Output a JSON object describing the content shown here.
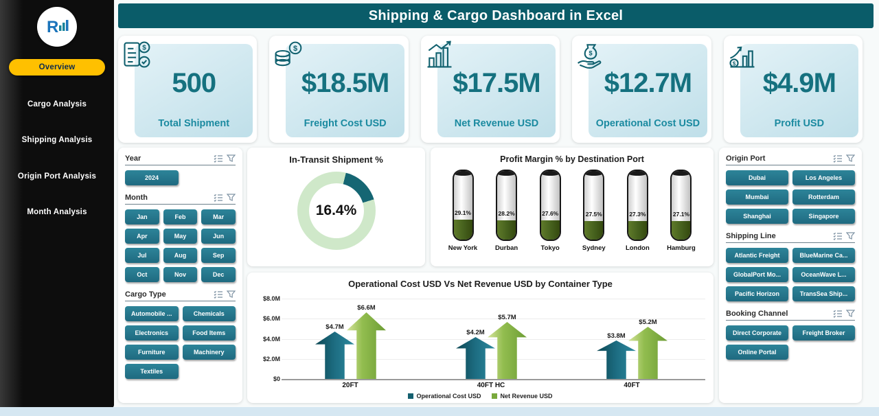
{
  "colors": {
    "header_bg": "#0a5c69",
    "accent_teal": "#26798e",
    "active_nav": "#ffc000",
    "kpi_value": "#15717f",
    "kpi_label": "#1b8aa0",
    "donut_value": "#156673",
    "donut_rest": "#cfe8c9",
    "cylinder_fill": "#4b6322",
    "operational_color": "#14606f",
    "revenue_color": "#79a93c"
  },
  "header": {
    "title": "Shipping & Cargo Dashboard in Excel"
  },
  "sidebar": {
    "items": [
      {
        "label": "Overview",
        "active": true
      },
      {
        "label": "Cargo Analysis",
        "active": false
      },
      {
        "label": "Shipping Analysis",
        "active": false
      },
      {
        "label": "Origin Port Analysis",
        "active": false
      },
      {
        "label": "Month Analysis",
        "active": false
      }
    ]
  },
  "kpis": [
    {
      "value": "500",
      "label": "Total Shipment"
    },
    {
      "value": "$18.5M",
      "label": "Freight Cost USD"
    },
    {
      "value": "$17.5M",
      "label": "Net Revenue USD"
    },
    {
      "value": "$12.7M",
      "label": "Operational Cost USD"
    },
    {
      "value": "$4.9M",
      "label": "Profit USD"
    }
  ],
  "filters": {
    "year": {
      "label": "Year",
      "options": [
        "2024"
      ]
    },
    "month": {
      "label": "Month",
      "options": [
        "Jan",
        "Feb",
        "Mar",
        "Apr",
        "May",
        "Jun",
        "Jul",
        "Aug",
        "Sep",
        "Oct",
        "Nov",
        "Dec"
      ]
    },
    "cargo_type": {
      "label": "Cargo Type",
      "options": [
        "Automobile ...",
        "Chemicals",
        "Electronics",
        "Food Items",
        "Furniture",
        "Machinery",
        "Textiles"
      ]
    }
  },
  "slicers": {
    "origin_port": {
      "label": "Origin Port",
      "options": [
        "Dubai",
        "Los Angeles",
        "Mumbai",
        "Rotterdam",
        "Shanghai",
        "Singapore"
      ]
    },
    "shipping_line": {
      "label": "Shipping Line",
      "options": [
        "Atlantic Freight",
        "BlueMarine Ca...",
        "GlobalPort Mo...",
        "OceanWave L...",
        "Pacific Horizon",
        "TransSea Ship..."
      ]
    },
    "booking_channel": {
      "label": "Booking Channel",
      "options": [
        "Direct Corporate",
        "Freight Broker",
        "Online Portal"
      ]
    }
  },
  "chart_data": [
    {
      "type": "pie",
      "title": "In-Transit Shipment %",
      "value": 16.4,
      "center_label": "16.4%"
    },
    {
      "type": "bar",
      "title": "Profit Margin % by Destination Port",
      "categories": [
        "New York",
        "Durban",
        "Tokyo",
        "Sydney",
        "London",
        "Hamburg"
      ],
      "values": [
        29.1,
        28.2,
        27.6,
        27.5,
        27.3,
        27.1
      ],
      "unit": "%",
      "ylim": [
        0,
        100
      ]
    },
    {
      "type": "bar",
      "title": "Operational Cost USD Vs Net Revenue USD by Container Type",
      "categories": [
        "20FT",
        "40FT HC",
        "40FT"
      ],
      "series": [
        {
          "name": "Operational Cost USD",
          "values": [
            4.7,
            4.2,
            3.8
          ],
          "labels": [
            "$4.7M",
            "$4.2M",
            "$3.8M"
          ]
        },
        {
          "name": "Net Revenue USD",
          "values": [
            6.6,
            5.7,
            5.2
          ],
          "labels": [
            "$6.6M",
            "$5.7M",
            "$5.2M"
          ]
        }
      ],
      "ylim": [
        0,
        8
      ],
      "yticks": [
        "$0",
        "$2.0M",
        "$4.0M",
        "$6.0M",
        "$8.0M"
      ],
      "legend_position": "bottom"
    }
  ]
}
